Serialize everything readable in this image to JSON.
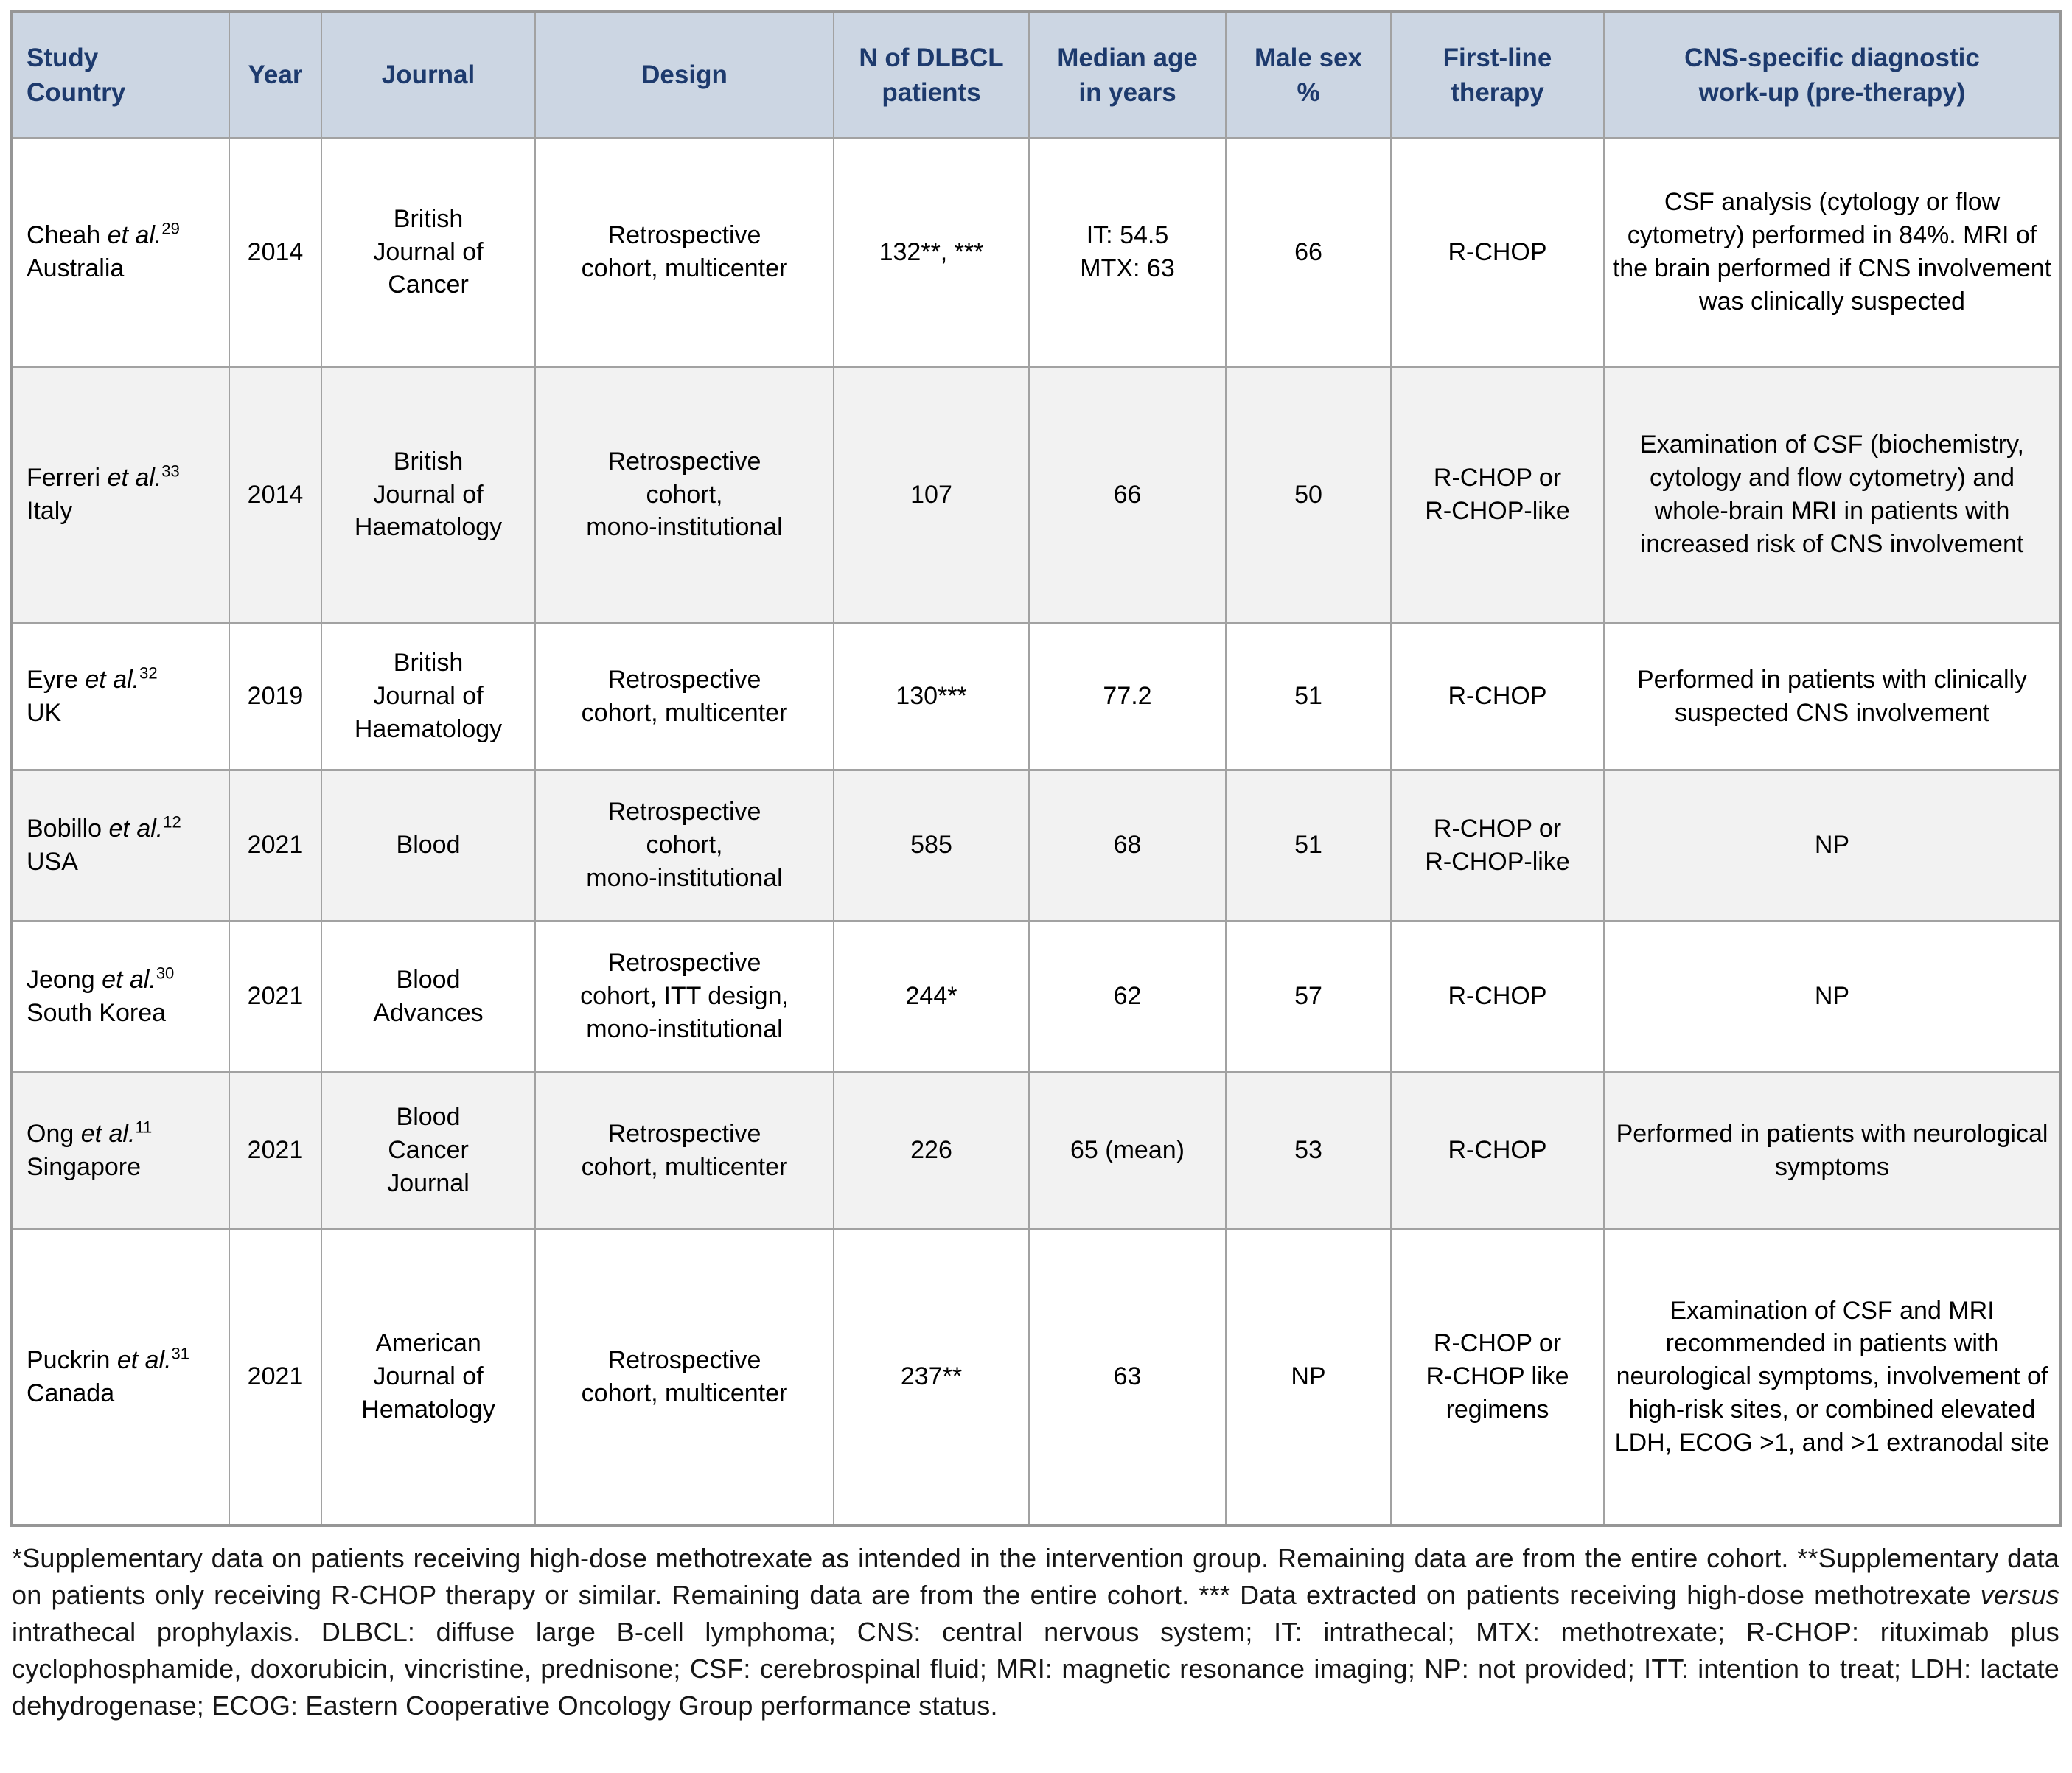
{
  "colors": {
    "header_background": "#ccd6e3",
    "header_text": "#1d3a6d",
    "row_alternate_background": "#f2f2f2",
    "grid_border": "#a2a2a2",
    "body_text": "#000000"
  },
  "table": {
    "headers": [
      {
        "label": "Study\nCountry"
      },
      {
        "label": "Year"
      },
      {
        "label": "Journal"
      },
      {
        "label": "Design"
      },
      {
        "label": "N of DLBCL\npatients"
      },
      {
        "label": "Median age\nin years"
      },
      {
        "label": "Male sex\n%"
      },
      {
        "label": "First-line\ntherapy"
      },
      {
        "label": "CNS-specific diagnostic\nwork-up (pre-therapy)"
      }
    ],
    "rows": [
      {
        "author": "Cheah",
        "et_al": "et al.",
        "ref": "29",
        "country": "Australia",
        "year": "2014",
        "journal": "British\nJournal of\nCancer",
        "design": "Retrospective\ncohort, multicenter",
        "n_dlbcl_patients": "132**, ***",
        "median_age": "IT: 54.5\nMTX: 63",
        "male_sex_pct": "66",
        "first_line_therapy": "R-CHOP",
        "cns_workup": "CSF analysis (cytology or flow cytometry) performed in 84%. MRI of the brain performed if CNS involvement was clinically suspected"
      },
      {
        "author": "Ferreri",
        "et_al": "et al.",
        "ref": "33",
        "country": "Italy",
        "year": "2014",
        "journal": "British\nJournal of\nHaematology",
        "design": "Retrospective\ncohort,\nmono-institutional",
        "n_dlbcl_patients": "107",
        "median_age": "66",
        "male_sex_pct": "50",
        "first_line_therapy": "R-CHOP or\nR-CHOP-like",
        "cns_workup": "Examination of CSF (biochemistry, cytology and flow cytometry) and whole-brain MRI in patients with increased risk of CNS involvement"
      },
      {
        "author": "Eyre",
        "et_al": "et al.",
        "ref": "32",
        "country": "UK",
        "year": "2019",
        "journal": "British\nJournal of\nHaematology",
        "design": "Retrospective\ncohort, multicenter",
        "n_dlbcl_patients": "130***",
        "median_age": "77.2",
        "male_sex_pct": "51",
        "first_line_therapy": "R-CHOP",
        "cns_workup": "Performed in patients with clinically suspected CNS involvement"
      },
      {
        "author": "Bobillo",
        "et_al": "et al.",
        "ref": "12",
        "country": "USA",
        "year": "2021",
        "journal": "Blood",
        "design": "Retrospective\ncohort,\nmono-institutional",
        "n_dlbcl_patients": "585",
        "median_age": "68",
        "male_sex_pct": "51",
        "first_line_therapy": "R-CHOP or\nR-CHOP-like",
        "cns_workup": "NP"
      },
      {
        "author": "Jeong",
        "et_al": "et al.",
        "ref": "30",
        "country": "South Korea",
        "year": "2021",
        "journal": "Blood\nAdvances",
        "design": "Retrospective\ncohort, ITT design,\nmono-institutional",
        "n_dlbcl_patients": "244*",
        "median_age": "62",
        "male_sex_pct": "57",
        "first_line_therapy": "R-CHOP",
        "cns_workup": "NP"
      },
      {
        "author": "Ong",
        "et_al": "et al.",
        "ref": "11",
        "country": "Singapore",
        "year": "2021",
        "journal": "Blood\nCancer\nJournal",
        "design": "Retrospective\ncohort, multicenter",
        "n_dlbcl_patients": "226",
        "median_age": "65 (mean)",
        "male_sex_pct": "53",
        "first_line_therapy": "R-CHOP",
        "cns_workup": "Performed in patients with neurological symptoms"
      },
      {
        "author": "Puckrin",
        "et_al": "et al.",
        "ref": "31",
        "country": "Canada",
        "year": "2021",
        "journal": "American\nJournal of\nHematology",
        "design": "Retrospective\ncohort, multicenter",
        "n_dlbcl_patients": "237**",
        "median_age": "63",
        "male_sex_pct": "NP",
        "first_line_therapy": "R-CHOP or\nR-CHOP like\nregimens",
        "cns_workup": "Examination of CSF and MRI recommended in patients with neurological symptoms, involvement of high-risk sites, or combined elevated LDH, ECOG >1, and >1 extranodal site"
      }
    ]
  },
  "footnote": {
    "part1": "*Supplementary data on patients receiving high-dose methotrexate as intended in the intervention group. Remaining data are from the entire cohort. **Supplementary data on patients only receiving R-CHOP therapy or similar. Remaining data are from the entire cohort. *** Data extracted on patients receiving high-dose methotrexate ",
    "versus": "versus",
    "part2": " intrathecal prophylaxis. DLBCL: diffuse large B-cell lymphoma; CNS: central nervous system; IT: intrathecal; MTX: methotrexate; R-CHOP: rituximab plus cyclophosphamide, doxorubicin, vincristine, prednisone; CSF: cerebrospinal fluid; MRI: magnetic resonance imaging; NP: not provided; ITT: intention to treat; LDH: lactate dehydrogenase; ECOG: Eastern Cooperative Oncology Group performance status."
  }
}
